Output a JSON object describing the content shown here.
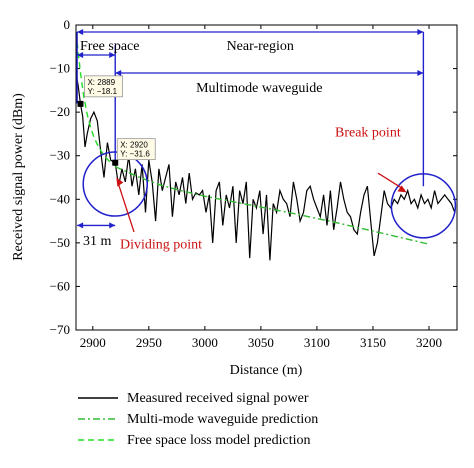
{
  "chart_data": {
    "type": "line",
    "xlabel": "Distance (m)",
    "ylabel": "Received signal power (dBm)",
    "xlim": [
      2885,
      3225
    ],
    "ylim": [
      -70,
      0
    ],
    "xticks": [
      2900,
      2950,
      3000,
      3050,
      3100,
      3150,
      3200
    ],
    "yticks": [
      0,
      -10,
      -20,
      -30,
      -40,
      -50,
      -60,
      -70
    ],
    "legend_position": "bottom",
    "grid": false,
    "series": [
      {
        "name": "Measured received signal power",
        "style": "solid",
        "color": "#000000",
        "x": [
          2885,
          2887,
          2889,
          2891,
          2893,
          2895,
          2898,
          2901,
          2904,
          2907,
          2910,
          2913,
          2916,
          2920,
          2923,
          2926,
          2929,
          2932,
          2935,
          2938,
          2941,
          2944,
          2947,
          2950,
          2953,
          2956,
          2959,
          2962,
          2965,
          2968,
          2971,
          2974,
          2977,
          2980,
          2983,
          2986,
          2989,
          2992,
          2995,
          2998,
          3001,
          3004,
          3007,
          3010,
          3013,
          3016,
          3019,
          3022,
          3025,
          3028,
          3031,
          3034,
          3037,
          3040,
          3043,
          3046,
          3049,
          3052,
          3055,
          3058,
          3061,
          3064,
          3067,
          3070,
          3073,
          3076,
          3079,
          3082,
          3085,
          3088,
          3091,
          3094,
          3097,
          3100,
          3103,
          3106,
          3109,
          3112,
          3115,
          3118,
          3121,
          3124,
          3127,
          3130,
          3133,
          3136,
          3139,
          3142,
          3145,
          3148,
          3151,
          3154,
          3157,
          3160,
          3163,
          3166,
          3169,
          3172,
          3175,
          3178,
          3181,
          3184,
          3187,
          3190,
          3193,
          3196,
          3199,
          3202,
          3205,
          3208,
          3211,
          3214,
          3217,
          3220,
          3223
        ],
        "y": [
          -11,
          -14,
          -18.1,
          -21,
          -28,
          -25,
          -21.5,
          -20,
          -22,
          -29,
          -35,
          -27,
          -31,
          -31.6,
          -37,
          -33,
          -36,
          -30,
          -37,
          -33,
          -39,
          -32,
          -43,
          -31,
          -36,
          -45,
          -33,
          -38,
          -35,
          -32,
          -44,
          -36,
          -39,
          -35,
          -41,
          -34,
          -40,
          -38.5,
          -39,
          -38,
          -43,
          -39,
          -50,
          -38,
          -36,
          -46,
          -39,
          -42,
          -37,
          -50,
          -38,
          -41,
          -36,
          -53.5,
          -40,
          -42,
          -38,
          -48,
          -39,
          -54,
          -41,
          -43,
          -38,
          -40,
          -41,
          -44,
          -36,
          -40,
          -45,
          -43,
          -38,
          -37,
          -40,
          -42,
          -44,
          -39,
          -46,
          -38,
          -47,
          -42,
          -36,
          -40,
          -43,
          -44,
          -47,
          -48,
          -43,
          -39,
          -37,
          -45,
          -53,
          -50,
          -44,
          -38,
          -41,
          -42,
          -40,
          -41,
          -39,
          -40,
          -38,
          -41,
          -40,
          -42,
          -39,
          -41,
          -40,
          -42,
          -38,
          -41,
          -40,
          -39,
          -40,
          -41,
          -43
        ]
      },
      {
        "name": "Multi-mode waveguide prediction",
        "style": "dashdot",
        "color": "#33bb33",
        "x": [
          2920,
          2940,
          2960,
          2980,
          3000,
          3020,
          3040,
          3060,
          3080,
          3100,
          3120,
          3140,
          3160,
          3180,
          3200
        ],
        "y": [
          -32.5,
          -34.8,
          -36.7,
          -38.1,
          -39.3,
          -40.3,
          -41.3,
          -42.3,
          -43.3,
          -44.4,
          -45.5,
          -46.7,
          -47.9,
          -49.1,
          -50.3
        ]
      },
      {
        "name": "Free space loss model prediction",
        "style": "dashed",
        "color": "#22dd22",
        "x": [
          2886,
          2889,
          2892,
          2895,
          2898,
          2901,
          2904,
          2907,
          2910,
          2913,
          2916,
          2920
        ],
        "y": [
          -4,
          -11,
          -16.5,
          -20.5,
          -23.5,
          -25.7,
          -27.4,
          -28.8,
          -29.9,
          -30.8,
          -31.6,
          -32.3
        ]
      }
    ],
    "datatips": [
      {
        "x_label": "X: 2889",
        "y_label": "Y: −18.1",
        "x": 2889,
        "y": -18.1
      },
      {
        "x_label": "X: 2920",
        "y_label": "Y: −31.6",
        "x": 2920,
        "y": -31.6
      }
    ],
    "regions": {
      "free_space": {
        "label": "Free space",
        "from": 2886,
        "to": 2920
      },
      "near_region": {
        "label": "Near-region",
        "from": 2886,
        "to": 3195
      },
      "multimode": {
        "label": "Multimode waveguide",
        "from": 2920,
        "to": 3195
      },
      "width_31m": {
        "label": "31 m",
        "from": 2886,
        "to": 2920
      }
    },
    "annotations": {
      "dividing_point": "Dividing point",
      "break_point": "Break point"
    }
  }
}
